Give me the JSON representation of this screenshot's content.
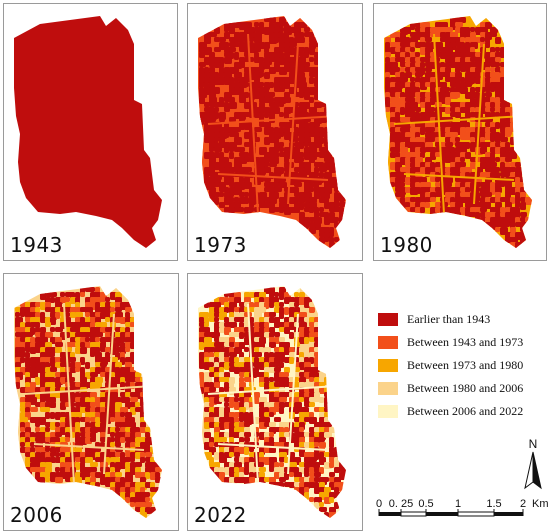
{
  "panels": [
    {
      "year": "1943",
      "classes": [
        0
      ]
    },
    {
      "year": "1973",
      "classes": [
        1,
        0
      ]
    },
    {
      "year": "1980",
      "classes": [
        2,
        1,
        0
      ]
    },
    {
      "year": "2006",
      "classes": [
        3,
        2,
        1,
        0
      ]
    },
    {
      "year": "2022",
      "classes": [
        4,
        3,
        2,
        1,
        0
      ]
    }
  ],
  "legend": {
    "items": [
      {
        "label": "Earlier than 1943",
        "color": "#bf0d0d"
      },
      {
        "label": "Between 1943 and 1973",
        "color": "#f24f1a"
      },
      {
        "label": "Between 1973 and 1980",
        "color": "#f7a600"
      },
      {
        "label": "Between 1980 and 2006",
        "color": "#fbd38a"
      },
      {
        "label": "Between 2006 and 2022",
        "color": "#fff5c4"
      }
    ]
  },
  "north_arrow": {
    "label": "N"
  },
  "scale_bar": {
    "ticks": [
      "0",
      "0. 25",
      "0.5",
      "1",
      "1.5",
      "2"
    ],
    "unit": "Km"
  }
}
